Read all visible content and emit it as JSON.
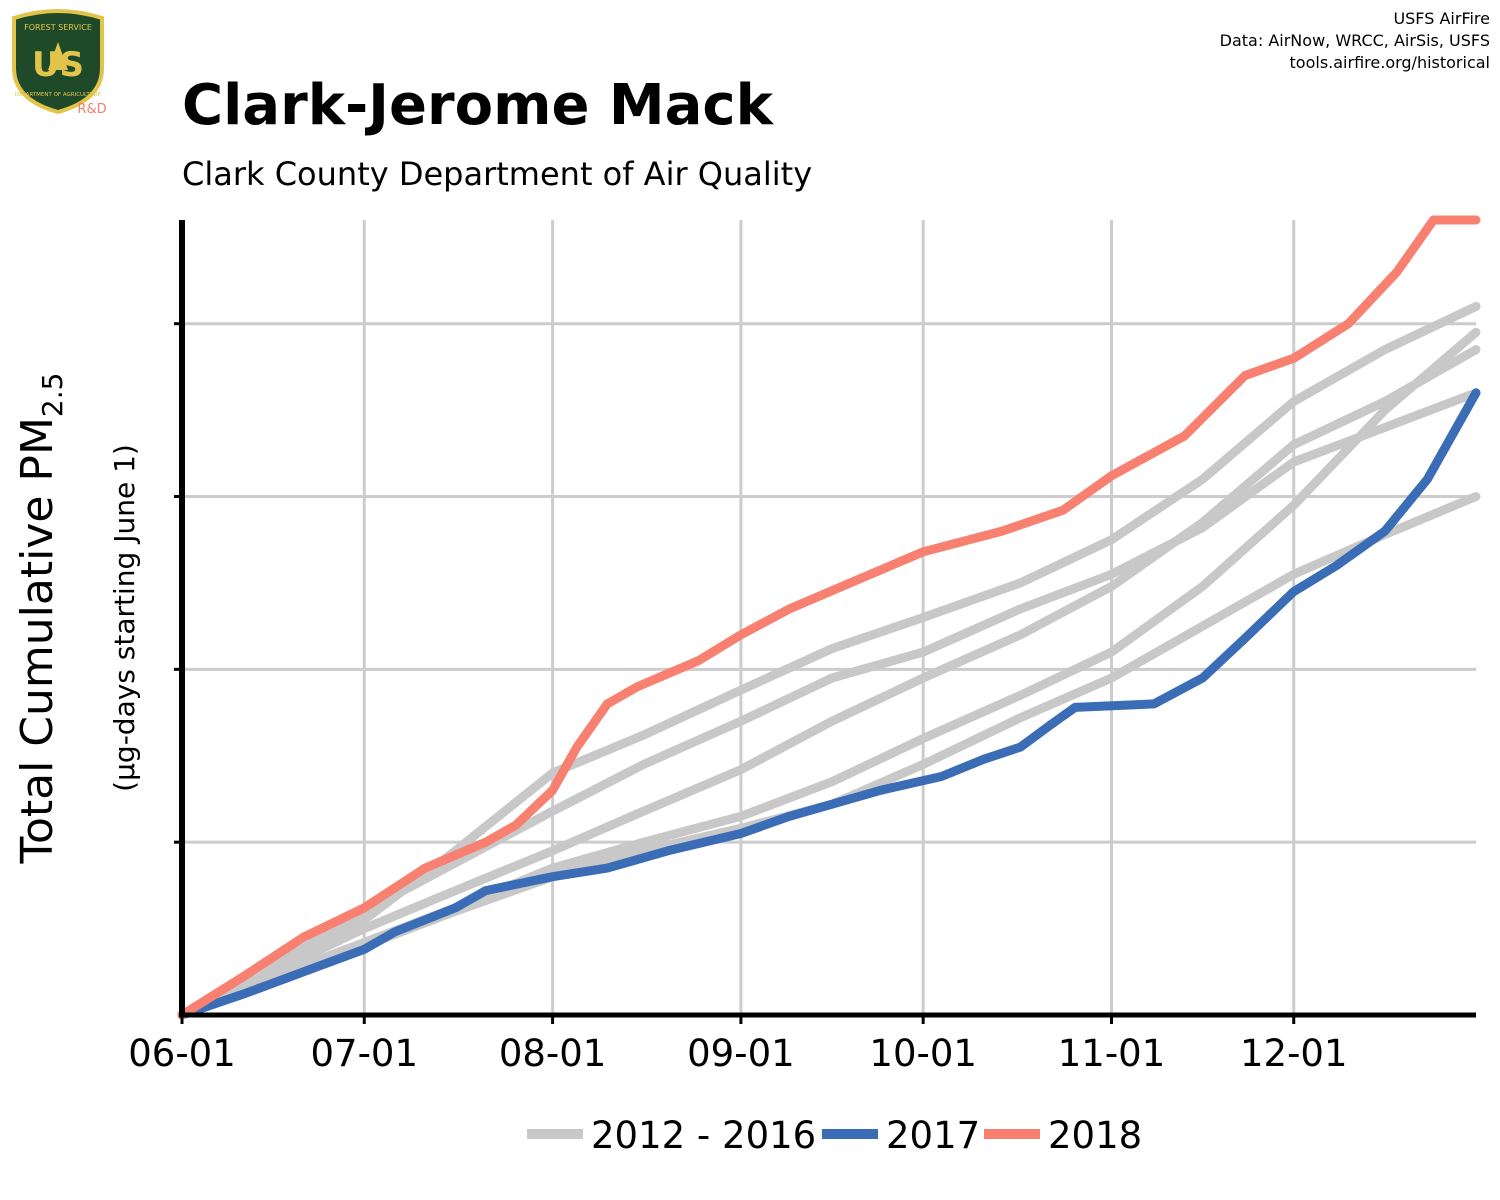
{
  "header": {
    "title": "Clark-Jerome Mack",
    "subtitle": "Clark County Department of Air Quality",
    "credits": [
      "USFS AirFire",
      "Data: AirNow, WRCC, AirSis, USFS",
      "tools.airfire.org/historical"
    ]
  },
  "logo": {
    "top_text": "FOREST SERVICE",
    "bottom_text": "DEPARTMENT OF AGRICULTURE",
    "letters": "US",
    "badge": "R&D",
    "colors": {
      "shield": "#1f4a2a",
      "border": "#e3c44a",
      "badge": "#f08070"
    }
  },
  "colors": {
    "background": "#ffffff",
    "grid": "#cccccc",
    "axis": "#000000",
    "series_2012_2016": "#c8c8c8",
    "series_2017": "#3a6db5",
    "series_2018": "#f88070"
  },
  "chart_data": {
    "type": "line",
    "ylabel_main": "Total Cumulative PM",
    "ylabel_sub": "2.5",
    "ylabel_secondary": "(µg-days starting June 1)",
    "x_tick_labels": [
      "06-01",
      "07-01",
      "08-01",
      "09-01",
      "10-01",
      "11-01",
      "12-01"
    ],
    "x_tick_days": [
      0,
      30,
      61,
      92,
      122,
      153,
      183
    ],
    "xlim": [
      0,
      213
    ],
    "ylim": [
      0,
      4.6
    ],
    "y_gridlines": [
      1,
      2,
      3,
      4
    ],
    "y_tick_labels": [],
    "grid": true,
    "legend_position": "bottom",
    "legend": [
      {
        "label": "2012 - 2016",
        "color_key": "series_2012_2016"
      },
      {
        "label": "2017",
        "color_key": "series_2017"
      },
      {
        "label": "2018",
        "color_key": "series_2018"
      }
    ],
    "series": [
      {
        "name": "2012 - 2016",
        "color_key": "series_2012_2016",
        "x": [
          0,
          15,
          30,
          45,
          61,
          76,
          92,
          107,
          122,
          138,
          153,
          168,
          183,
          198,
          213
        ],
        "y": [
          0,
          0.28,
          0.6,
          0.88,
          1.18,
          1.45,
          1.7,
          1.95,
          2.1,
          2.35,
          2.55,
          2.82,
          3.2,
          3.4,
          3.6
        ]
      },
      {
        "name": "2012 - 2016",
        "color_key": "series_2012_2016",
        "x": [
          0,
          15,
          30,
          45,
          61,
          76,
          92,
          107,
          122,
          138,
          153,
          168,
          183,
          198,
          213
        ],
        "y": [
          0,
          0.25,
          0.5,
          0.72,
          0.95,
          1.18,
          1.42,
          1.7,
          1.95,
          2.2,
          2.48,
          2.85,
          3.3,
          3.55,
          3.85
        ]
      },
      {
        "name": "2012 - 2016",
        "color_key": "series_2012_2016",
        "x": [
          0,
          15,
          30,
          45,
          61,
          76,
          92,
          107,
          122,
          138,
          153,
          168,
          183,
          198,
          213
        ],
        "y": [
          0,
          0.22,
          0.42,
          0.62,
          0.85,
          1.0,
          1.15,
          1.35,
          1.6,
          1.85,
          2.1,
          2.48,
          2.95,
          3.5,
          3.95
        ]
      },
      {
        "name": "2012 - 2016",
        "color_key": "series_2012_2016",
        "x": [
          0,
          15,
          30,
          45,
          61,
          76,
          92,
          107,
          122,
          138,
          153,
          168,
          183,
          198,
          213
        ],
        "y": [
          0,
          0.2,
          0.4,
          0.6,
          0.8,
          0.95,
          1.08,
          1.22,
          1.45,
          1.72,
          1.95,
          2.25,
          2.55,
          2.78,
          3.0
        ]
      },
      {
        "name": "2012 - 2016",
        "color_key": "series_2012_2016",
        "x": [
          0,
          15,
          30,
          45,
          61,
          76,
          92,
          107,
          122,
          138,
          153,
          168,
          183,
          198,
          213
        ],
        "y": [
          0,
          0.25,
          0.55,
          0.95,
          1.4,
          1.62,
          1.88,
          2.12,
          2.3,
          2.5,
          2.75,
          3.1,
          3.55,
          3.85,
          4.1
        ]
      },
      {
        "name": "2017",
        "color_key": "series_2017",
        "x": [
          0,
          10,
          20,
          30,
          35,
          45,
          50,
          61,
          70,
          80,
          92,
          100,
          107,
          115,
          125,
          132,
          138,
          143,
          147,
          160,
          168,
          175,
          183,
          190,
          198,
          205,
          213
        ],
        "y": [
          0,
          0.12,
          0.25,
          0.38,
          0.48,
          0.62,
          0.72,
          0.8,
          0.85,
          0.95,
          1.05,
          1.15,
          1.22,
          1.3,
          1.38,
          1.48,
          1.55,
          1.68,
          1.78,
          1.8,
          1.95,
          2.18,
          2.45,
          2.6,
          2.8,
          3.1,
          3.6
        ]
      },
      {
        "name": "2018",
        "color_key": "series_2018",
        "x": [
          0,
          10,
          20,
          30,
          40,
          50,
          55,
          61,
          65,
          70,
          75,
          85,
          92,
          100,
          110,
          122,
          135,
          145,
          153,
          165,
          175,
          183,
          192,
          200,
          206,
          213
        ],
        "y": [
          0,
          0.22,
          0.45,
          0.62,
          0.85,
          1.0,
          1.1,
          1.3,
          1.55,
          1.8,
          1.9,
          2.05,
          2.2,
          2.35,
          2.5,
          2.68,
          2.8,
          2.92,
          3.12,
          3.35,
          3.7,
          3.8,
          4.0,
          4.3,
          4.6,
          4.6
        ]
      }
    ]
  }
}
